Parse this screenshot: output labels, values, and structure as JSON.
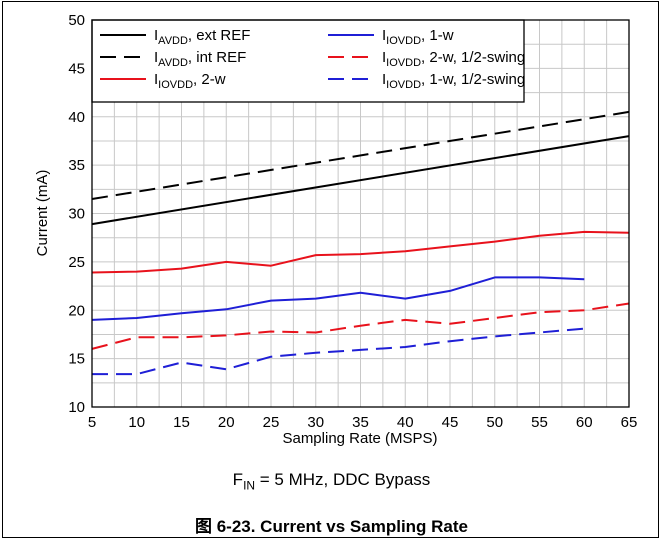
{
  "chart_data": {
    "type": "line",
    "xlabel": "Sampling Rate (MSPS)",
    "ylabel": "Current (mA)",
    "xlim": [
      5,
      65
    ],
    "ylim": [
      10,
      50
    ],
    "xticks": [
      5,
      10,
      15,
      20,
      25,
      30,
      35,
      40,
      45,
      50,
      55,
      60,
      65
    ],
    "yticks": [
      10,
      15,
      20,
      25,
      30,
      35,
      40,
      45,
      50
    ],
    "grid": true,
    "legend_position": "top",
    "series": [
      {
        "name_main": "I",
        "name_sub": "AVDD",
        "name_rest": ", ext REF",
        "color": "#000000",
        "dash": "solid",
        "points": [
          [
            5,
            28.9
          ],
          [
            65,
            38.0
          ]
        ]
      },
      {
        "name_main": "I",
        "name_sub": "AVDD",
        "name_rest": ", int REF",
        "color": "#000000",
        "dash": "dashed",
        "points": [
          [
            5,
            31.5
          ],
          [
            65,
            40.5
          ]
        ]
      },
      {
        "name_main": "I",
        "name_sub": "IOVDD",
        "name_rest": ", 2-w",
        "color": "#e8121c",
        "dash": "solid",
        "points": [
          [
            5,
            23.9
          ],
          [
            10,
            24.0
          ],
          [
            15,
            24.3
          ],
          [
            20,
            25.0
          ],
          [
            25,
            24.6
          ],
          [
            30,
            25.7
          ],
          [
            35,
            25.8
          ],
          [
            40,
            26.1
          ],
          [
            45,
            26.6
          ],
          [
            50,
            27.1
          ],
          [
            55,
            27.7
          ],
          [
            60,
            28.1
          ],
          [
            65,
            28.0
          ]
        ]
      },
      {
        "name_main": "I",
        "name_sub": "IOVDD",
        "name_rest": ", 1-w",
        "color": "#1f1fd6",
        "dash": "solid",
        "points": [
          [
            5,
            19.0
          ],
          [
            10,
            19.2
          ],
          [
            15,
            19.7
          ],
          [
            20,
            20.1
          ],
          [
            25,
            21.0
          ],
          [
            30,
            21.2
          ],
          [
            35,
            21.8
          ],
          [
            40,
            21.2
          ],
          [
            45,
            22.0
          ],
          [
            50,
            23.4
          ],
          [
            55,
            23.4
          ],
          [
            60,
            23.2
          ]
        ]
      },
      {
        "name_main": "I",
        "name_sub": "IOVDD",
        "name_rest": ", 2-w, 1/2-swing",
        "color": "#e8121c",
        "dash": "dashed",
        "points": [
          [
            5,
            16.0
          ],
          [
            10,
            17.2
          ],
          [
            15,
            17.2
          ],
          [
            20,
            17.4
          ],
          [
            25,
            17.8
          ],
          [
            30,
            17.7
          ],
          [
            35,
            18.4
          ],
          [
            40,
            19.0
          ],
          [
            45,
            18.6
          ],
          [
            50,
            19.2
          ],
          [
            55,
            19.8
          ],
          [
            60,
            20.0
          ],
          [
            65,
            20.7
          ]
        ]
      },
      {
        "name_main": "I",
        "name_sub": "IOVDD",
        "name_rest": ", 1-w, 1/2-swing",
        "color": "#1f1fd6",
        "dash": "dashed",
        "points": [
          [
            5,
            13.4
          ],
          [
            10,
            13.4
          ],
          [
            15,
            14.6
          ],
          [
            20,
            13.9
          ],
          [
            25,
            15.2
          ],
          [
            30,
            15.6
          ],
          [
            35,
            15.9
          ],
          [
            40,
            16.2
          ],
          [
            45,
            16.8
          ],
          [
            50,
            17.3
          ],
          [
            55,
            17.7
          ],
          [
            60,
            18.1
          ]
        ]
      }
    ]
  },
  "caption": {
    "main": "F",
    "sub": "IN",
    "rest": " = 5 MHz, DDC Bypass"
  },
  "figure_title": "图 6-23. Current vs Sampling Rate"
}
